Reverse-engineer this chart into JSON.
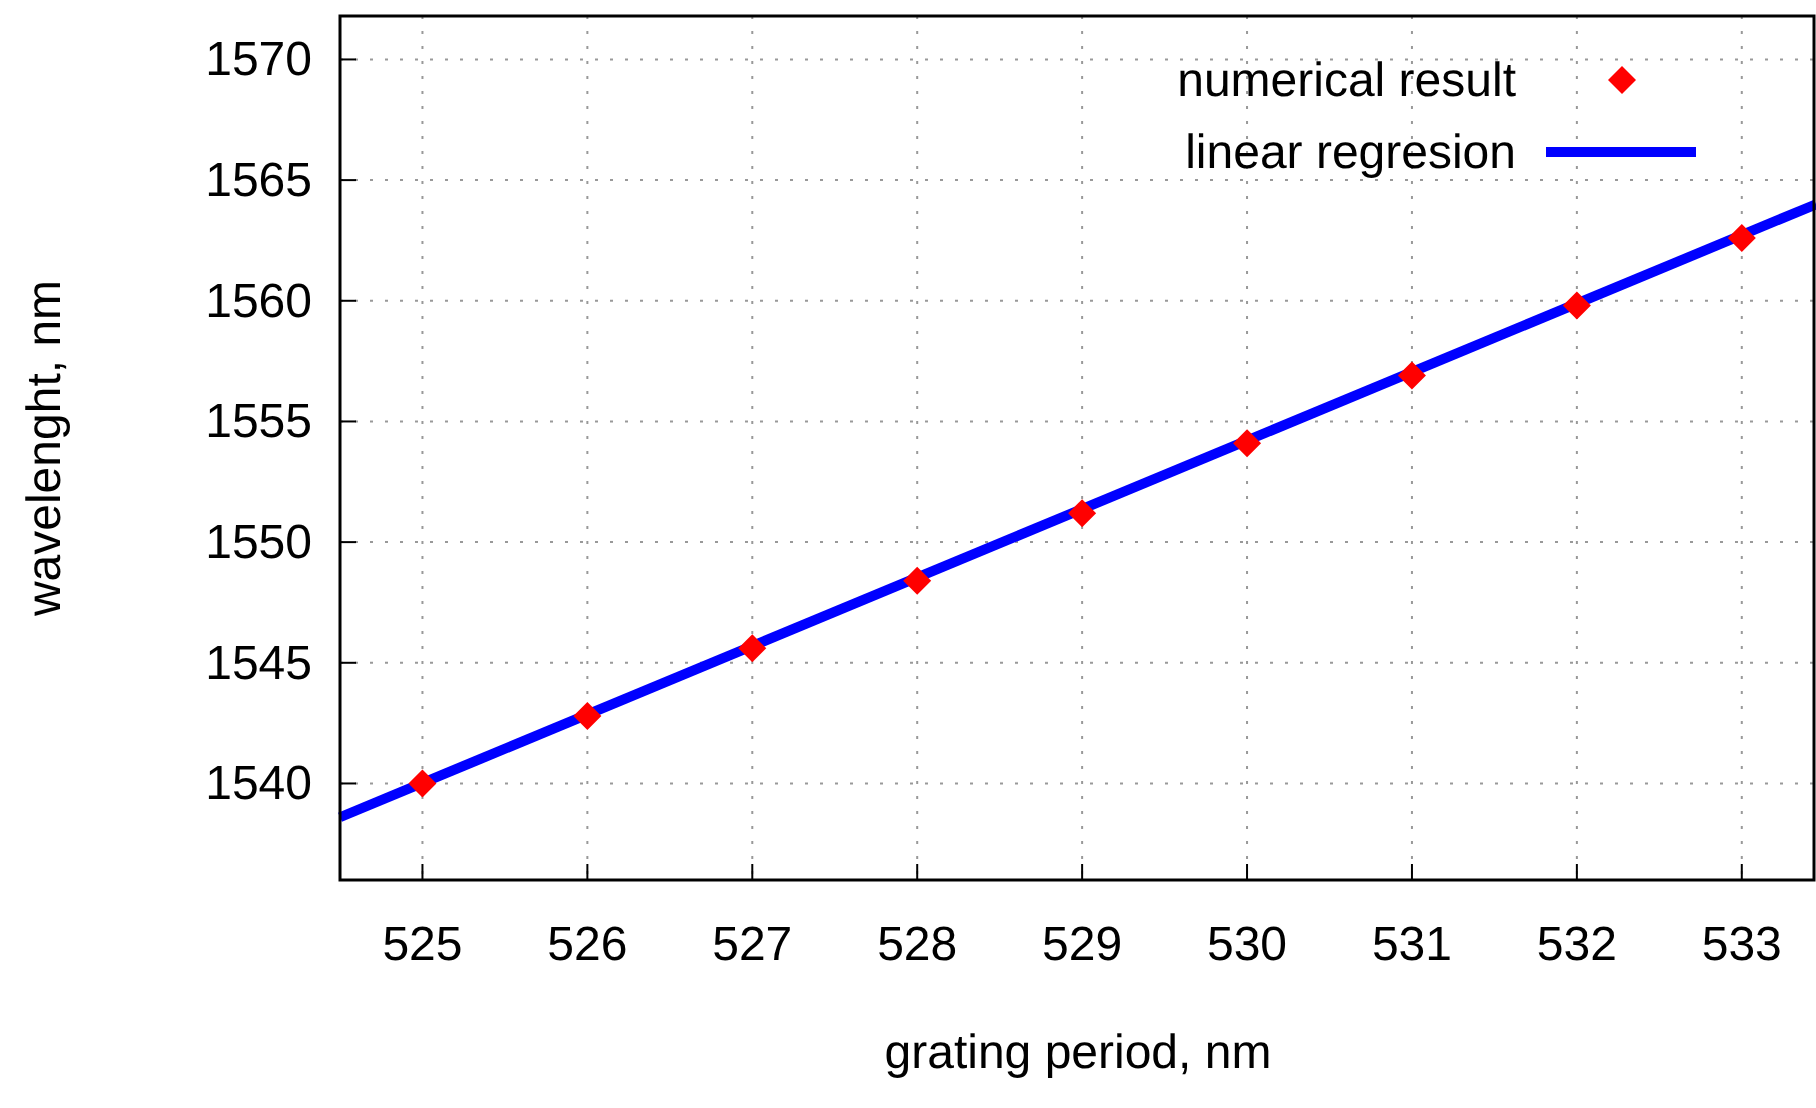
{
  "chart_data": {
    "type": "scatter",
    "xlabel": "grating period, nm",
    "ylabel": "wavelenght, nm",
    "xlim": [
      524.5,
      533.45
    ],
    "xticks": [
      525,
      526,
      527,
      528,
      529,
      530,
      531,
      532,
      533
    ],
    "ylim": [
      1536,
      1571.8
    ],
    "yticks": [
      1540,
      1545,
      1550,
      1555,
      1560,
      1565,
      1570
    ],
    "grid": true,
    "legend": "top right",
    "series": [
      {
        "name": "numerical result",
        "marker": "diamond",
        "color": "#ff0000",
        "x": [
          525,
          526,
          527,
          528,
          529,
          530,
          531,
          532,
          533
        ],
        "values": [
          1540.0,
          1542.8,
          1545.6,
          1548.4,
          1551.2,
          1554.1,
          1556.9,
          1559.8,
          1562.6
        ]
      },
      {
        "name": "linear regresion",
        "type": "line",
        "marker": "none",
        "line_style": "solid",
        "color": "#0000ff",
        "x": [
          524.5,
          533.45
        ],
        "values": [
          1538.6,
          1564.0
        ]
      }
    ]
  }
}
